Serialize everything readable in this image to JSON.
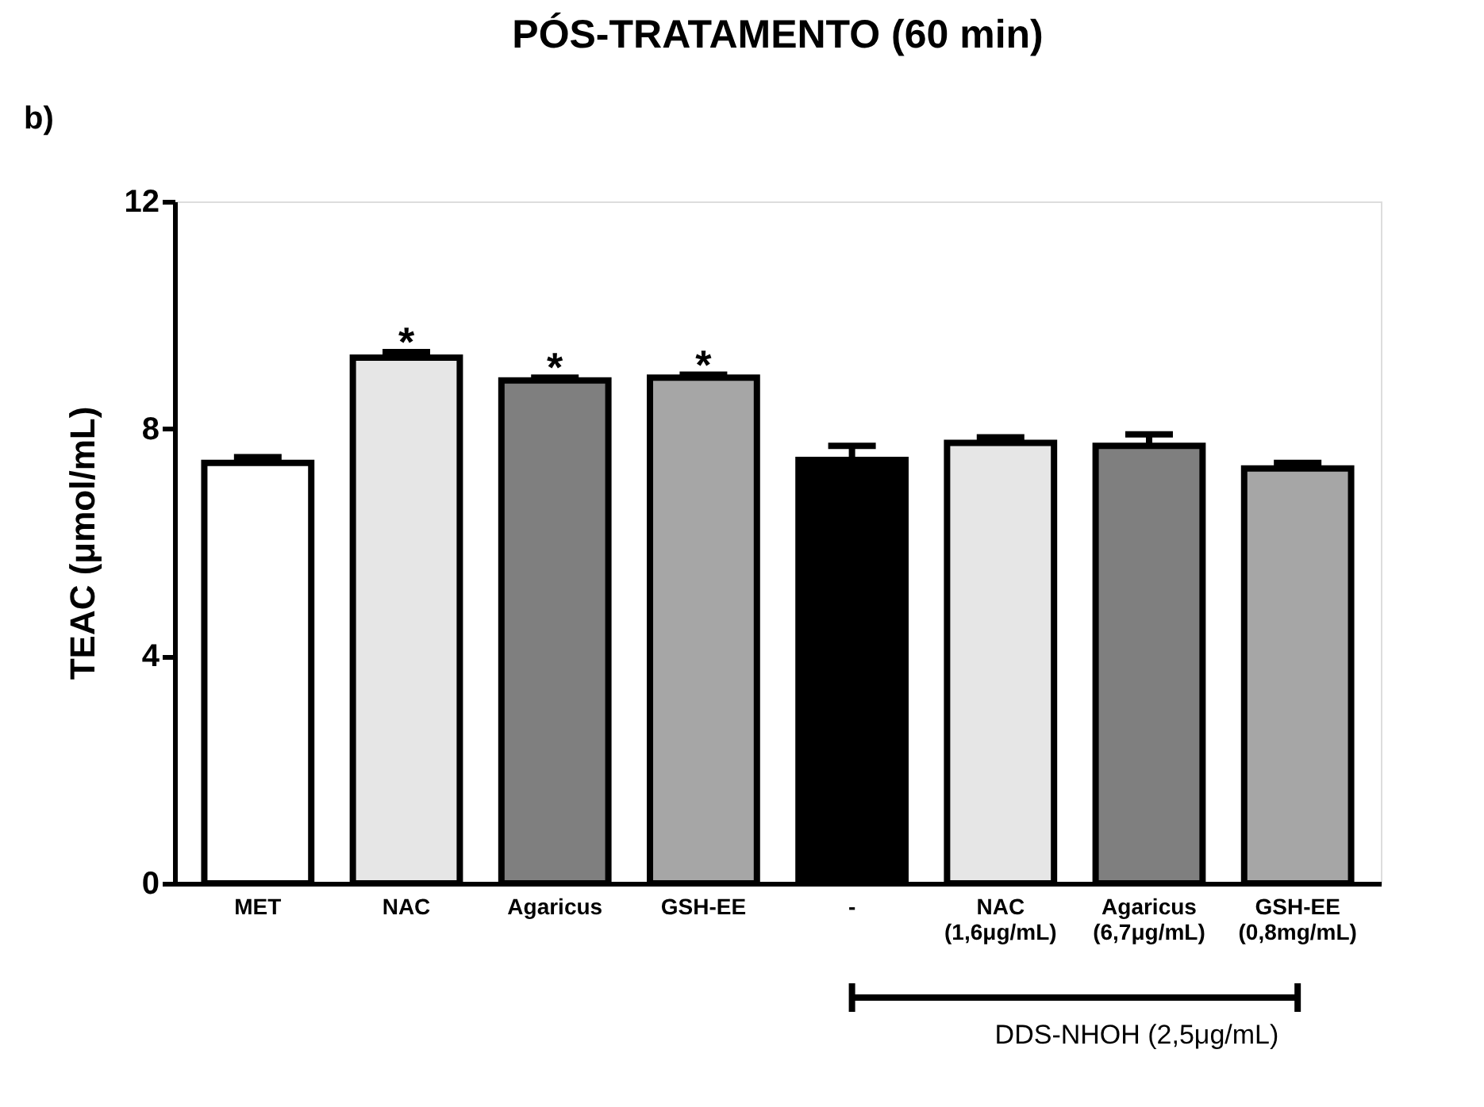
{
  "chart_data": {
    "type": "bar",
    "title": "PÓS-TRATAMENTO (60 min)",
    "ylabel": "TEAC (μmol/mL)",
    "categories": [
      "MET",
      "NAC",
      "Agaricus",
      "GSH-EE",
      "-",
      "NAC\n(1,6μg/mL)",
      "Agaricus\n(6,7μg/mL)",
      "GSH-EE\n(0,8mg/mL)"
    ],
    "values": [
      7.4,
      9.25,
      8.85,
      8.9,
      7.45,
      7.75,
      7.7,
      7.3
    ],
    "errors": [
      0.1,
      0.1,
      0.05,
      0.05,
      0.25,
      0.1,
      0.2,
      0.1
    ],
    "colors": [
      "#ffffff",
      "#e6e6e6",
      "#7f7f7f",
      "#a6a6a6",
      "#000000",
      "#e6e6e6",
      "#7f7f7f",
      "#a6a6a6"
    ],
    "ylim": [
      0,
      12
    ],
    "yticks": [
      0,
      4,
      8,
      12
    ],
    "grid": false,
    "annotations": [
      {
        "text": "*",
        "x": "NAC",
        "y": 9.5
      },
      {
        "text": "*",
        "x": "Agaricus",
        "y": 9.05
      },
      {
        "text": "*",
        "x": "GSH-EE",
        "y": 9.1
      },
      "b)",
      "DDS-NHOH (2,5μg/mL)"
    ]
  }
}
